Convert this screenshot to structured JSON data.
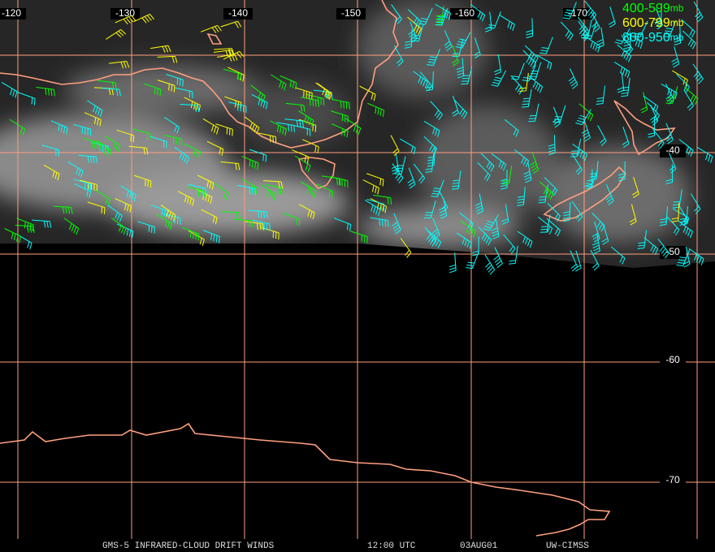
{
  "map": {
    "lon_labels": [
      "-120",
      "-130",
      "-140",
      "-150",
      "-160",
      "-170"
    ],
    "lat_labels": [
      "-40",
      "-50",
      "-60",
      "-70"
    ],
    "legend": [
      {
        "range": "400-599",
        "unit": "mb",
        "color": "#00ff00"
      },
      {
        "range": "600-799",
        "unit": "mb",
        "color": "#ffff00"
      },
      {
        "range": "800-950",
        "unit": "mb",
        "color": "#00ffff"
      }
    ],
    "footer": [
      "GMS-5 INFRARED-CLOUD DRIFT WINDS",
      "12:00 UTC",
      "03AUG01",
      "UW-CIMSS"
    ]
  }
}
